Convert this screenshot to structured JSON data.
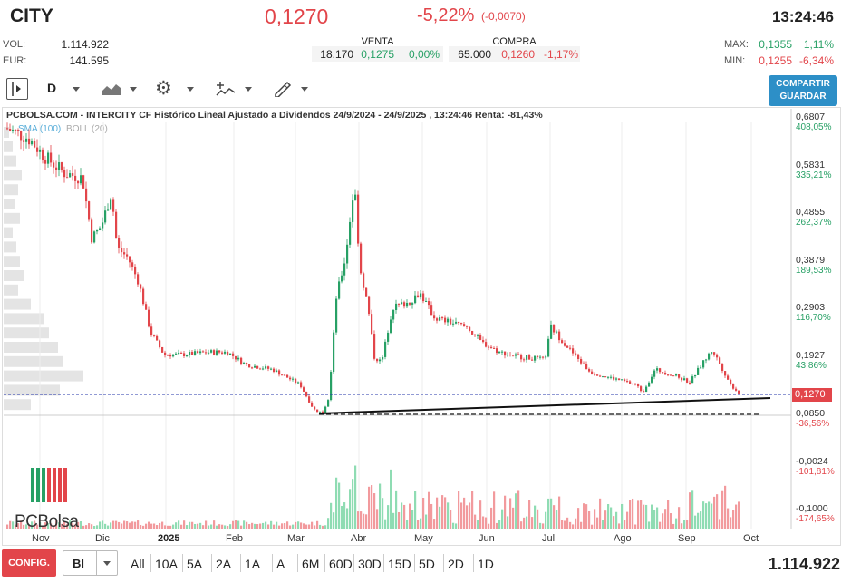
{
  "header": {
    "ticker": "CITY",
    "last_price": "0,1270",
    "change_pct": "-5,22%",
    "change_abs": "(-0,0070)",
    "time": "13:24:46"
  },
  "stats": {
    "vol_label": "VOL:",
    "vol_value": "1.114.922",
    "eur_label": "EUR:",
    "eur_value": "141.595",
    "max_label": "MAX:",
    "max_value": "0,1355",
    "max_pct": "1,11%",
    "min_label": "MIN:",
    "min_value": "0,1255",
    "min_pct": "-6,34%"
  },
  "quotes": {
    "sell_label": "VENTA",
    "sell_qty": "18.170",
    "sell_price": "0,1275",
    "sell_pct": "0,00%",
    "buy_label": "COMPRA",
    "buy_qty": "65.000",
    "buy_price": "0,1260",
    "buy_pct": "-1,17%"
  },
  "toolbar": {
    "period": "D",
    "share_line1": "COMPARTIR",
    "share_line2": "GUARDAR",
    "icons": [
      "panel-toggle-icon",
      "area-chart-icon",
      "gear-icon",
      "indicators-icon",
      "drawing-pencil-icon"
    ]
  },
  "chart": {
    "title": "PCBOLSA.COM - INTERCITY CF Histórico Lineal Ajustado a Dividendos 24/9/2024 - 24/9/2025 , 13:24:46 Renta: -81,43%",
    "legend_sma": "SMA (100)",
    "legend_boll": "BOLL (20)",
    "current_price_label": "0,1270",
    "logo_text": "PCBolsa",
    "colors": {
      "up": "#27a065",
      "down": "#e2454a",
      "volume_up": "#8fdcb3",
      "volume_down": "#f29a9d"
    }
  },
  "chart_data": {
    "type": "candlestick",
    "title": "PCBOLSA.COM - INTERCITY CF Histórico Lineal Ajustado a Dividendos 24/9/2024 - 24/9/2025 , 13:24:46 Renta: -81,43%",
    "y_ticks": [
      {
        "price": "0,6807",
        "pct": "408,05%"
      },
      {
        "price": "0,5831",
        "pct": "335,21%"
      },
      {
        "price": "0,4855",
        "pct": "262,37%"
      },
      {
        "price": "0,3879",
        "pct": "189,53%"
      },
      {
        "price": "0,2903",
        "pct": "116,70%"
      },
      {
        "price": "0,1927",
        "pct": "43,86%"
      },
      {
        "price": "0,0850",
        "pct": "-36,56%"
      },
      {
        "price": "-0,0024",
        "pct": "-101,81%"
      },
      {
        "price": "-0,1000",
        "pct": "-174,65%"
      }
    ],
    "x_labels": [
      "Nov",
      "Dic",
      "2025",
      "Feb",
      "Mar",
      "Abr",
      "May",
      "Jun",
      "Jul",
      "Ago",
      "Sep",
      "Oct"
    ],
    "ylim": [
      -0.1,
      0.6807
    ],
    "series": [
      {
        "name": "INTERCITY CF",
        "months": [
          "Oct",
          "Nov",
          "Dic",
          "Ene",
          "Feb",
          "Mar",
          "Abr",
          "May",
          "Jun",
          "Jul",
          "Ago",
          "Sep"
        ],
        "close_approx": [
          0.66,
          0.57,
          0.42,
          0.21,
          0.17,
          0.12,
          0.3,
          0.27,
          0.21,
          0.23,
          0.14,
          0.127
        ]
      }
    ],
    "support_line": "from Mar low ~0,085 rising to ~0,11 at Sep"
  },
  "footer": {
    "config_label": "CONFIG.",
    "chart_type": "Bl",
    "ranges": [
      "All",
      "10A",
      "5A",
      "2A",
      "1A",
      "A",
      "6M",
      "60D",
      "30D",
      "15D",
      "5D",
      "2D",
      "1D"
    ],
    "total_volume": "1.114.922"
  }
}
